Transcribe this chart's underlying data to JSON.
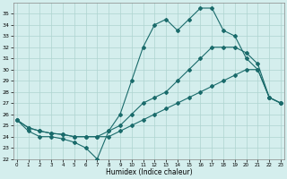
{
  "xlabel": "Humidex (Indice chaleur)",
  "x": [
    0,
    1,
    2,
    3,
    4,
    5,
    6,
    7,
    8,
    9,
    10,
    11,
    12,
    13,
    14,
    15,
    16,
    17,
    18,
    19,
    20,
    21,
    22,
    23
  ],
  "line_top": [
    25.5,
    24.5,
    24.0,
    24.0,
    23.8,
    23.5,
    23.0,
    22.0,
    24.5,
    26.0,
    29.0,
    32.0,
    34.0,
    34.5,
    33.5,
    34.5,
    35.5,
    35.5,
    33.5,
    33.0,
    31.0,
    30.0,
    27.5,
    27.0
  ],
  "line_mid": [
    25.5,
    24.8,
    24.5,
    24.3,
    24.2,
    24.0,
    24.0,
    24.0,
    24.5,
    25.0,
    26.0,
    27.0,
    27.5,
    28.0,
    29.0,
    30.0,
    31.0,
    32.0,
    32.0,
    32.0,
    31.5,
    30.5,
    27.5,
    27.0
  ],
  "line_bot": [
    25.5,
    24.8,
    24.5,
    24.3,
    24.2,
    24.0,
    24.0,
    24.0,
    24.0,
    24.5,
    25.0,
    25.5,
    26.0,
    26.5,
    27.0,
    27.5,
    28.0,
    28.5,
    29.0,
    29.5,
    30.0,
    30.0,
    27.5,
    27.0
  ],
  "line_color": "#1a6b6b",
  "bg_color": "#d4eeed",
  "grid_color": "#aed4d0",
  "ylim_min": 22,
  "ylim_max": 36,
  "yticks": [
    22,
    23,
    24,
    25,
    26,
    27,
    28,
    29,
    30,
    31,
    32,
    33,
    34,
    35
  ],
  "xlim_min": -0.3,
  "xlim_max": 23.3
}
